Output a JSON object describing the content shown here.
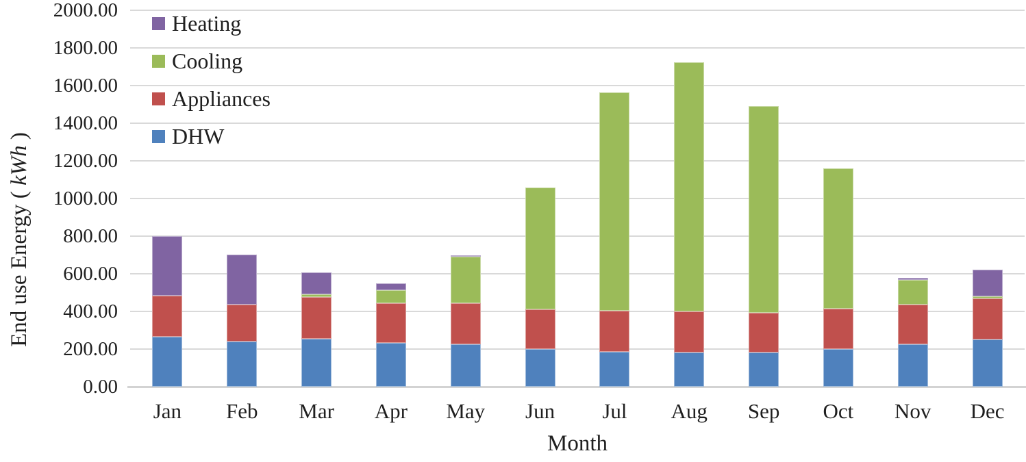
{
  "chart_data": {
    "type": "bar",
    "stacked": true,
    "xlabel": "Month",
    "ylabel_prefix": "End use Energy ( ",
    "ylabel_unit": "kWh",
    "ylabel_suffix": " )",
    "categories": [
      "Jan",
      "Feb",
      "Mar",
      "Apr",
      "May",
      "Jun",
      "Jul",
      "Aug",
      "Sep",
      "Oct",
      "Nov",
      "Dec"
    ],
    "series": [
      {
        "name": "DHW",
        "color": "#4F81BD",
        "values": [
          266,
          239,
          256,
          234,
          225,
          200,
          184,
          182,
          181,
          200,
          224,
          252
        ]
      },
      {
        "name": "Appliances",
        "color": "#C0504D",
        "values": [
          216,
          198,
          219,
          209,
          218,
          212,
          219,
          218,
          210,
          215,
          211,
          218
        ]
      },
      {
        "name": "Cooling",
        "color": "#9BBB59",
        "values": [
          0,
          0,
          15,
          69,
          248,
          648,
          1162,
          1322,
          1099,
          745,
          133,
          11
        ]
      },
      {
        "name": "Heating",
        "color": "#8064A2",
        "values": [
          318,
          266,
          118,
          36,
          8,
          0,
          0,
          0,
          0,
          0,
          10,
          141
        ]
      }
    ],
    "totals": [
      800,
      703,
      608,
      548,
      699,
      1060,
      1565,
      1722,
      1490,
      1160,
      578,
      622
    ],
    "legend_order": [
      "Heating",
      "Cooling",
      "Appliances",
      "DHW"
    ],
    "legend_position": "top-left-inside",
    "ylim": [
      0,
      2000
    ],
    "ytick_step": 200,
    "ytick_labels": [
      "0.00",
      "200.00",
      "400.00",
      "600.00",
      "800.00",
      "1000.00",
      "1200.00",
      "1400.00",
      "1600.00",
      "1800.00",
      "2000.00"
    ],
    "grid": "horizontal"
  },
  "colors": {
    "grid": "#D9D9D9",
    "axis": "#D3D3D3",
    "text": "#1F1F1F",
    "background": "#FFFFFF"
  }
}
